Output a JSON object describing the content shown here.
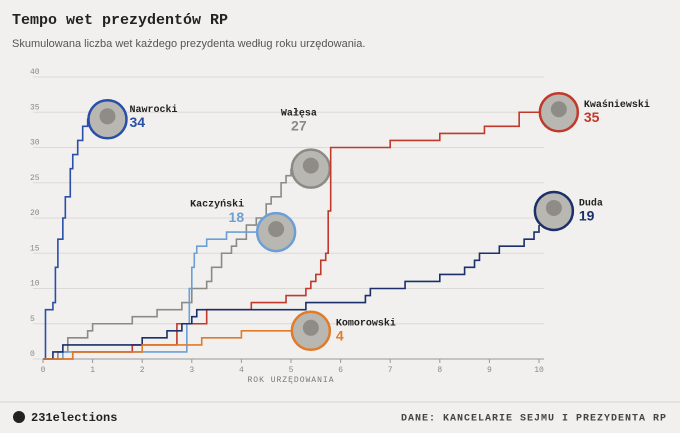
{
  "chart_data": {
    "type": "step-line",
    "title": "Tempo wet prezydentów RP",
    "subtitle": "Skumulowana liczba wet każdego prezydenta według roku urzędowania.",
    "x_label": "ROK URZĘDOWANIA",
    "xlim": [
      0,
      10
    ],
    "xticks": [
      0,
      1,
      2,
      3,
      4,
      5,
      6,
      7,
      8,
      9,
      10
    ],
    "ylim": [
      0,
      40
    ],
    "yticks": [
      0,
      5,
      10,
      15,
      20,
      25,
      30,
      35,
      40
    ],
    "grid": true,
    "series": [
      {
        "name": "Nawrocki",
        "color": "#2a4fa8",
        "x": [
          0,
          0.05,
          0.2,
          0.25,
          0.3,
          0.4,
          0.45,
          0.55,
          0.6,
          0.7,
          0.8,
          0.9,
          1.0
        ],
        "values": [
          0,
          7,
          8,
          13,
          17,
          20,
          23,
          27,
          29,
          31,
          33,
          34,
          34
        ]
      },
      {
        "name": "Wałęsa",
        "color": "#8a8a86",
        "x": [
          0,
          0.3,
          0.5,
          0.9,
          1.0,
          1.8,
          2.3,
          2.8,
          3.0,
          3.3,
          3.4,
          3.6,
          3.8,
          3.9,
          4.1,
          4.3,
          4.5,
          4.6,
          4.8,
          4.9,
          5.0
        ],
        "values": [
          0,
          1,
          3,
          4,
          5,
          6,
          7,
          8,
          10,
          11,
          13,
          15,
          16,
          17,
          19,
          20,
          22,
          23,
          25,
          26,
          27
        ]
      },
      {
        "name": "Kaczyński",
        "color": "#6b9fd6",
        "x": [
          0,
          0.4,
          2.4,
          2.9,
          2.95,
          3.0,
          3.05,
          3.1,
          3.3,
          3.7,
          4.6
        ],
        "values": [
          0,
          1,
          1,
          5,
          10,
          13,
          15,
          16,
          17,
          18,
          18
        ]
      },
      {
        "name": "Kwaśniewski",
        "color": "#c0392b",
        "x": [
          0,
          0.6,
          1.8,
          2.7,
          3.3,
          4.2,
          4.9,
          5.3,
          5.4,
          5.5,
          5.6,
          5.7,
          5.75,
          5.8,
          7.0,
          8.0,
          8.9,
          9.6,
          10.0
        ],
        "values": [
          0,
          1,
          2,
          5,
          7,
          8,
          9,
          10,
          11,
          12,
          14,
          15,
          21,
          30,
          31,
          32,
          33,
          35,
          35
        ]
      },
      {
        "name": "Duda",
        "color": "#1b2f6b",
        "x": [
          0,
          0.2,
          0.4,
          2.0,
          2.5,
          2.8,
          3.0,
          3.1,
          5.3,
          6.5,
          6.6,
          7.3,
          8.0,
          8.5,
          8.7,
          8.8,
          9.2,
          9.7,
          9.9,
          10.0
        ],
        "values": [
          0,
          1,
          2,
          3,
          4,
          5,
          6,
          7,
          8,
          9,
          10,
          11,
          12,
          13,
          14,
          15,
          16,
          17,
          18,
          19
        ]
      },
      {
        "name": "Komorowski",
        "color": "#e07b2a",
        "x": [
          0,
          0.6,
          2.0,
          3.2,
          4.0,
          5.0
        ],
        "values": [
          0,
          1,
          2,
          3,
          4,
          4
        ]
      }
    ]
  },
  "footer": {
    "brand": "231elections",
    "source": "DANE: KANCELARIE SEJMU I PREZYDENTA RP"
  }
}
